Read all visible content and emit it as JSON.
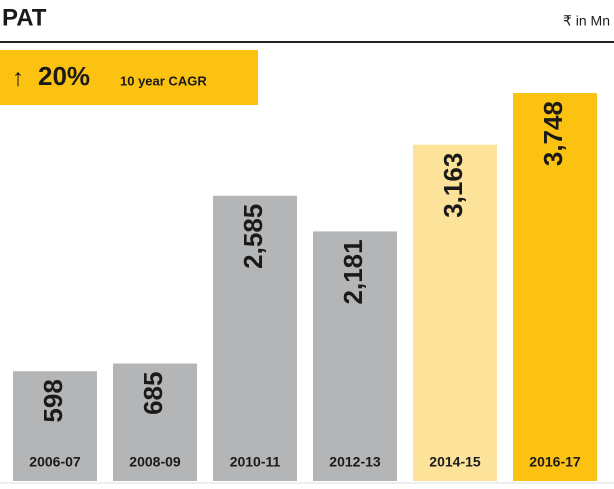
{
  "chart_data": {
    "type": "bar",
    "title": "PAT",
    "unit": "₹ in Mn",
    "annotation": {
      "arrow": "↑",
      "value": "20%",
      "text": "10 year CAGR"
    },
    "categories": [
      "2006-07",
      "2008-09",
      "2010-11",
      "2012-13",
      "2014-15",
      "2016-17"
    ],
    "values": [
      598,
      685,
      2585,
      2181,
      3163,
      3748
    ],
    "value_labels": [
      "598",
      "685",
      "2,585",
      "2,181",
      "3,163",
      "3,748"
    ],
    "colors": [
      "#b4b5b7",
      "#b4b5b7",
      "#b4b5b7",
      "#b4b5b7",
      "#fde39a",
      "#fcc211"
    ]
  }
}
